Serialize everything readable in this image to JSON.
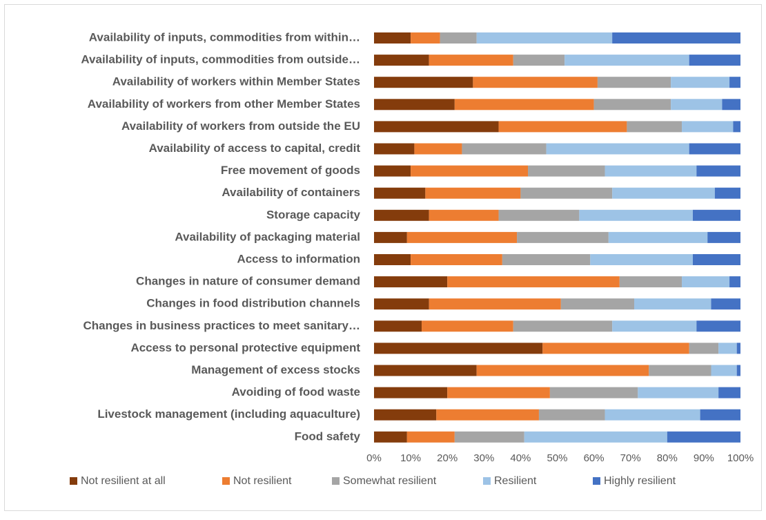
{
  "chart_data": {
    "type": "stacked_barh",
    "categories": [
      "Availability of inputs, commodities from within…",
      "Availability of inputs, commodities from outside…",
      "Availability of workers within Member States",
      "Availability of workers from other Member States",
      "Availability of workers from outside the EU",
      "Availability of access to capital, credit",
      "Free movement of goods",
      "Availability of containers",
      "Storage capacity",
      "Availability of packaging material",
      "Access to information",
      "Changes in nature of consumer demand",
      "Changes in food distribution channels",
      "Changes in business practices to meet sanitary…",
      "Access to personal protective equipment",
      "Management of excess stocks",
      "Avoiding of food waste ",
      "Livestock management (including aquaculture)",
      "Food safety"
    ],
    "series": [
      {
        "name": "Not resilient at all",
        "color": "#843c0c",
        "values": [
          10,
          15,
          27,
          22,
          34,
          11,
          10,
          14,
          15,
          9,
          10,
          20,
          15,
          13,
          46,
          28,
          20,
          17,
          9
        ]
      },
      {
        "name": "Not resilient",
        "color": "#ed7d31",
        "values": [
          8,
          23,
          34,
          38,
          35,
          13,
          32,
          26,
          19,
          30,
          25,
          47,
          36,
          25,
          40,
          47,
          28,
          28,
          13
        ]
      },
      {
        "name": "Somewhat resilient",
        "color": "#a5a5a5",
        "values": [
          10,
          14,
          20,
          21,
          15,
          23,
          21,
          25,
          22,
          25,
          24,
          17,
          20,
          27,
          8,
          17,
          24,
          18,
          19
        ]
      },
      {
        "name": "Resilient",
        "color": "#9dc3e6",
        "values": [
          37,
          34,
          16,
          14,
          14,
          39,
          25,
          28,
          31,
          27,
          28,
          13,
          21,
          23,
          5,
          7,
          22,
          26,
          39
        ]
      },
      {
        "name": "Highly resilient",
        "color": "#4472c4",
        "values": [
          35,
          14,
          3,
          5,
          2,
          14,
          12,
          7,
          13,
          9,
          13,
          3,
          8,
          12,
          1,
          1,
          6,
          11,
          20
        ]
      }
    ],
    "xlim": [
      0,
      100
    ],
    "xticks": [
      {
        "value": 0,
        "label": "0%"
      },
      {
        "value": 10,
        "label": "10%"
      },
      {
        "value": 20,
        "label": "20%"
      },
      {
        "value": 30,
        "label": "30%"
      },
      {
        "value": 40,
        "label": "40%"
      },
      {
        "value": 50,
        "label": "50%"
      },
      {
        "value": 60,
        "label": "60%"
      },
      {
        "value": 70,
        "label": "70%"
      },
      {
        "value": 80,
        "label": "80%"
      },
      {
        "value": 90,
        "label": "90%"
      },
      {
        "value": 100,
        "label": "100%"
      }
    ],
    "grid": false,
    "legend": "bottom"
  }
}
